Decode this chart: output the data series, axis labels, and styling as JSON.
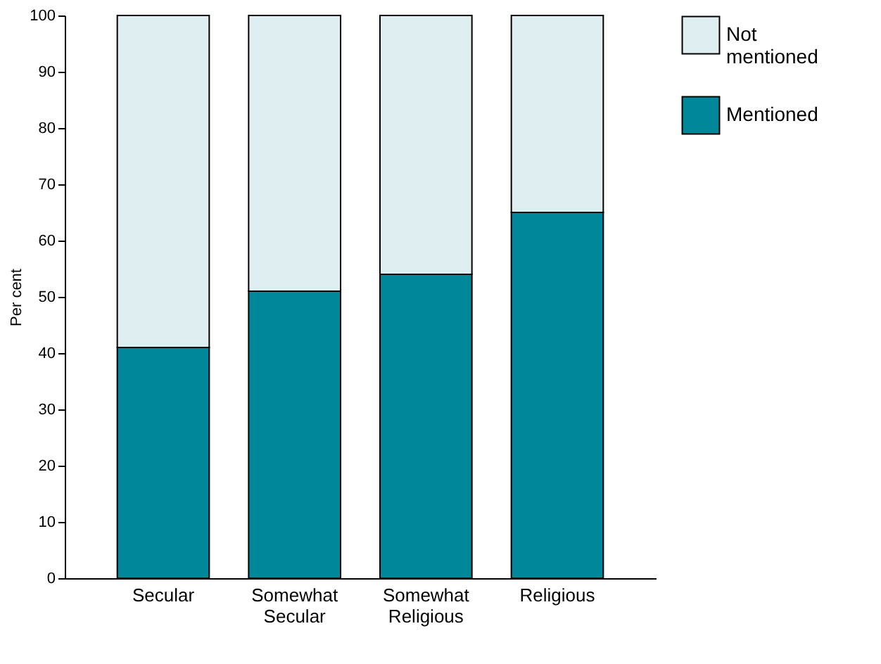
{
  "chart_data": {
    "type": "bar",
    "stacked": true,
    "ylabel": "Per cent",
    "categories": [
      "Secular",
      "Somewhat Secular",
      "Somewhat Religious",
      "Religious"
    ],
    "series": [
      {
        "name": "Mentioned",
        "color": "#00889a",
        "values": [
          41,
          51,
          54,
          65
        ]
      },
      {
        "name": "Not mentioned",
        "color": "#dfeef0",
        "values": [
          59,
          49,
          46,
          35
        ]
      }
    ],
    "ylim": [
      0,
      100
    ],
    "yticks": [
      0,
      10,
      20,
      30,
      40,
      50,
      60,
      70,
      80,
      90,
      100
    ],
    "grid": false,
    "legend": "right"
  }
}
